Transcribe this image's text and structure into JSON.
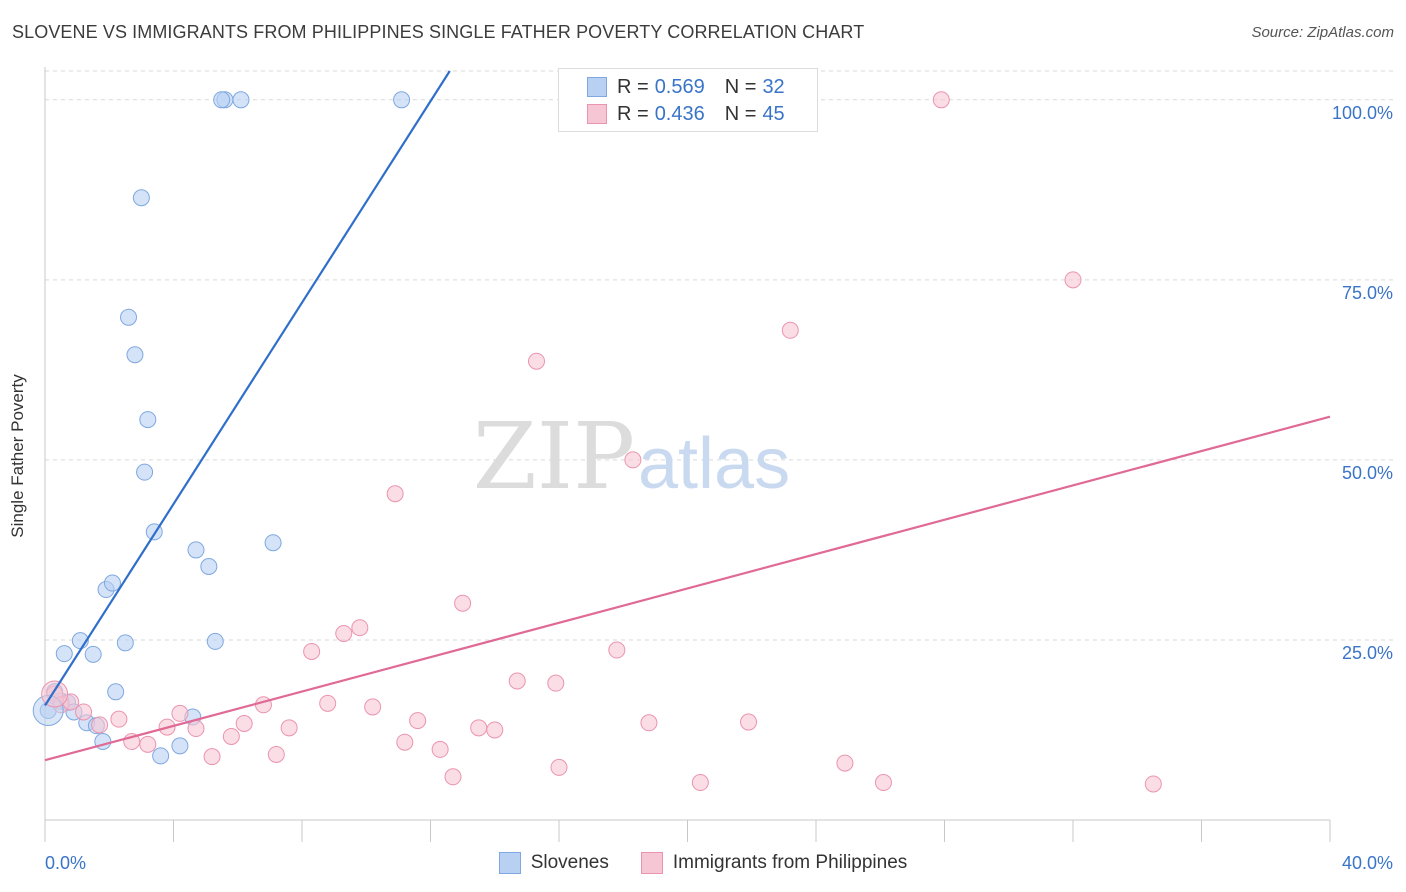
{
  "title": "SLOVENE VS IMMIGRANTS FROM PHILIPPINES SINGLE FATHER POVERTY CORRELATION CHART",
  "source": "Source: ZipAtlas.com",
  "watermark": {
    "zip": "ZIP",
    "atlas": "atlas"
  },
  "legend": {
    "rows": [
      {
        "r_label": "R = ",
        "r_value": "0.569",
        "n_label": "N = ",
        "n_value": "32"
      },
      {
        "r_label": "R = ",
        "r_value": "0.436",
        "n_label": "N = ",
        "n_value": "45"
      }
    ]
  },
  "bottom_legend": {
    "series1": "Slovenes",
    "series2": "Immigrants from Philippines"
  },
  "colors": {
    "blue_fill": "#b8d1f3",
    "blue_stroke": "#7fa8e0",
    "blue_line": "#2f6fc9",
    "pink_fill": "#f7c6d4",
    "pink_stroke": "#eb94b0",
    "pink_line": "#e06a95",
    "tick_label": "#3a74c8",
    "grid": "#d9d9d9"
  },
  "chart_data": {
    "type": "scatter",
    "title": "SLOVENE VS IMMIGRANTS FROM PHILIPPINES SINGLE FATHER POVERTY CORRELATION CHART",
    "xlabel": "",
    "ylabel": "Single Father Poverty",
    "xlim": [
      0,
      40
    ],
    "ylim": [
      0,
      104
    ],
    "x_tick_labels": [
      "0.0%",
      "40.0%"
    ],
    "y_ticks": [
      25,
      50,
      75,
      100
    ],
    "y_tick_labels": [
      "25.0%",
      "50.0%",
      "75.0%",
      "100.0%"
    ],
    "grid": true,
    "series": [
      {
        "name": "Slovenes",
        "points": [
          [
            0.1,
            15.2
          ],
          [
            0.3,
            17.8
          ],
          [
            0.5,
            16.5
          ],
          [
            0.6,
            23.1
          ],
          [
            0.7,
            16.3
          ],
          [
            0.9,
            15.0
          ],
          [
            1.1,
            24.9
          ],
          [
            1.3,
            13.5
          ],
          [
            1.5,
            23.0
          ],
          [
            1.6,
            13.1
          ],
          [
            1.8,
            10.9
          ],
          [
            1.9,
            32.0
          ],
          [
            2.1,
            32.9
          ],
          [
            2.2,
            17.8
          ],
          [
            2.5,
            24.6
          ],
          [
            2.6,
            69.8
          ],
          [
            2.8,
            64.6
          ],
          [
            3.0,
            86.4
          ],
          [
            3.1,
            48.3
          ],
          [
            3.2,
            55.6
          ],
          [
            3.4,
            40.0
          ],
          [
            3.6,
            8.9
          ],
          [
            4.2,
            10.3
          ],
          [
            4.6,
            14.3
          ],
          [
            4.7,
            37.5
          ],
          [
            5.1,
            35.2
          ],
          [
            5.3,
            24.8
          ],
          [
            5.6,
            100.0
          ],
          [
            6.1,
            100.0
          ],
          [
            5.5,
            100.0
          ],
          [
            7.1,
            38.5
          ],
          [
            11.1,
            100.0
          ]
        ],
        "trend": [
          [
            0.0,
            15.9
          ],
          [
            12.6,
            104.0
          ]
        ]
      },
      {
        "name": "Immigrants from Philippines",
        "points": [
          [
            0.3,
            17.5
          ],
          [
            0.5,
            16.0
          ],
          [
            0.8,
            16.4
          ],
          [
            1.2,
            15.0
          ],
          [
            1.7,
            13.2
          ],
          [
            2.3,
            14.0
          ],
          [
            2.7,
            10.9
          ],
          [
            3.2,
            10.5
          ],
          [
            3.8,
            12.9
          ],
          [
            4.2,
            14.8
          ],
          [
            4.7,
            12.7
          ],
          [
            5.2,
            8.8
          ],
          [
            5.8,
            11.6
          ],
          [
            6.2,
            13.4
          ],
          [
            6.8,
            16.0
          ],
          [
            7.6,
            12.8
          ],
          [
            7.2,
            9.1
          ],
          [
            8.3,
            23.4
          ],
          [
            8.8,
            16.2
          ],
          [
            9.3,
            25.9
          ],
          [
            9.8,
            26.7
          ],
          [
            10.2,
            15.7
          ],
          [
            10.9,
            45.3
          ],
          [
            11.2,
            10.8
          ],
          [
            11.6,
            13.8
          ],
          [
            12.3,
            9.8
          ],
          [
            12.7,
            6.0
          ],
          [
            13.0,
            30.1
          ],
          [
            13.5,
            12.8
          ],
          [
            14.0,
            12.5
          ],
          [
            14.7,
            19.3
          ],
          [
            15.3,
            63.7
          ],
          [
            15.9,
            19.0
          ],
          [
            16.0,
            7.3
          ],
          [
            17.8,
            23.6
          ],
          [
            18.3,
            50.0
          ],
          [
            18.8,
            13.5
          ],
          [
            20.4,
            5.2
          ],
          [
            21.9,
            13.6
          ],
          [
            23.2,
            68.0
          ],
          [
            24.9,
            7.9
          ],
          [
            26.1,
            5.2
          ],
          [
            27.9,
            100.0
          ],
          [
            32.0,
            75.0
          ],
          [
            34.5,
            5.0
          ]
        ],
        "trend": [
          [
            0.0,
            8.3
          ],
          [
            40.0,
            56.0
          ]
        ]
      }
    ]
  }
}
